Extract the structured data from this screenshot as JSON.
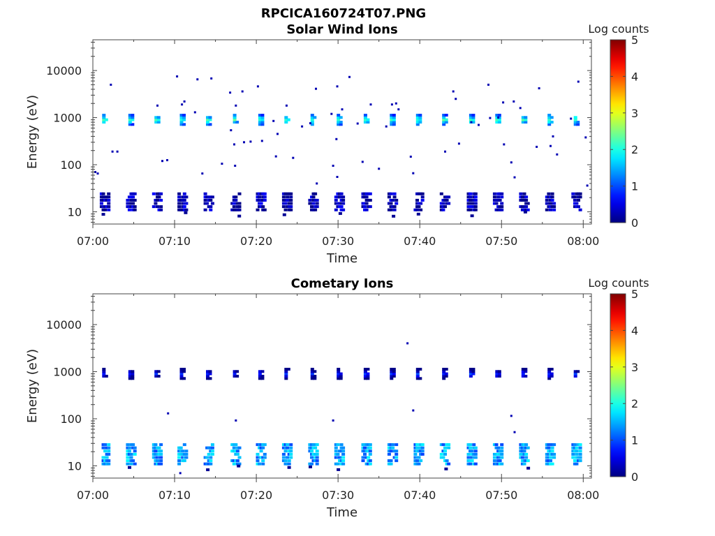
{
  "figure_title": "RPCICA160724T07.PNG",
  "chart_data": [
    {
      "type": "heatmap",
      "title": "Solar Wind Ions",
      "xlabel": "Time",
      "ylabel": "Energy (eV)",
      "x_ticks": [
        "07:00",
        "07:10",
        "07:20",
        "07:30",
        "07:40",
        "07:50",
        "08:00"
      ],
      "x_range_minutes": [
        0,
        61
      ],
      "y_ticks": [
        "10",
        "100",
        "1000",
        "10000"
      ],
      "y_scale": "log",
      "y_range": [
        5.5,
        45000
      ],
      "colorbar": {
        "label": "Log counts",
        "range": [
          0,
          5
        ],
        "ticks": [
          "0",
          "1",
          "2",
          "3",
          "4",
          "5"
        ],
        "colormap": "jet"
      },
      "scan_times_min": [
        1.5,
        4.7,
        7.9,
        11.0,
        14.2,
        17.5,
        20.6,
        23.8,
        27.0,
        30.2,
        33.5,
        36.7,
        39.9,
        43.1,
        46.4,
        49.6,
        52.8,
        56.0,
        59.2
      ],
      "peak_energy_ev": 900,
      "peak_log_counts": 2.2,
      "low_energy_band_ev": [
        11,
        25
      ],
      "low_energy_log_counts": 0.2,
      "sparse_points": [
        [
          0.3,
          70
        ],
        [
          0.6,
          65
        ],
        [
          2.2,
          5000
        ],
        [
          2.4,
          190
        ],
        [
          3.0,
          190
        ],
        [
          7.9,
          1800
        ],
        [
          8.5,
          120
        ],
        [
          9.1,
          125
        ],
        [
          10.3,
          7500
        ],
        [
          10.9,
          1900
        ],
        [
          11.2,
          2200
        ],
        [
          12.5,
          1300
        ],
        [
          12.8,
          6500
        ],
        [
          13.4,
          65
        ],
        [
          14.5,
          6800
        ],
        [
          15.8,
          105
        ],
        [
          16.8,
          3400
        ],
        [
          16.9,
          540
        ],
        [
          17.3,
          270
        ],
        [
          17.5,
          1800
        ],
        [
          17.4,
          95
        ],
        [
          18.3,
          3600
        ],
        [
          18.5,
          300
        ],
        [
          19.3,
          310
        ],
        [
          20.2,
          4600
        ],
        [
          20.7,
          320
        ],
        [
          22.1,
          850
        ],
        [
          22.4,
          150
        ],
        [
          22.6,
          450
        ],
        [
          23.7,
          1800
        ],
        [
          24.5,
          140
        ],
        [
          25.6,
          650
        ],
        [
          26.6,
          760
        ],
        [
          27.3,
          4100
        ],
        [
          27.4,
          40
        ],
        [
          29.2,
          1200
        ],
        [
          29.4,
          95
        ],
        [
          29.9,
          4600
        ],
        [
          29.8,
          350
        ],
        [
          29.9,
          55
        ],
        [
          30.5,
          1500
        ],
        [
          31.4,
          7300
        ],
        [
          32.4,
          750
        ],
        [
          33.0,
          115
        ],
        [
          34.0,
          1900
        ],
        [
          35.0,
          82
        ],
        [
          35.9,
          650
        ],
        [
          36.6,
          1900
        ],
        [
          37.1,
          2000
        ],
        [
          37.4,
          1500
        ],
        [
          38.9,
          148
        ],
        [
          39.2,
          66
        ],
        [
          43.1,
          190
        ],
        [
          44.1,
          3600
        ],
        [
          44.4,
          2500
        ],
        [
          44.8,
          280
        ],
        [
          46.3,
          800
        ],
        [
          47.2,
          700
        ],
        [
          48.4,
          5000
        ],
        [
          48.6,
          980
        ],
        [
          49.6,
          1000
        ],
        [
          50.2,
          2100
        ],
        [
          50.3,
          270
        ],
        [
          51.2,
          112
        ],
        [
          51.6,
          54
        ],
        [
          51.5,
          2200
        ],
        [
          52.3,
          1600
        ],
        [
          54.6,
          4200
        ],
        [
          54.3,
          240
        ],
        [
          56.0,
          250
        ],
        [
          56.3,
          400
        ],
        [
          56.8,
          165
        ],
        [
          58.5,
          950
        ],
        [
          59.4,
          5800
        ],
        [
          60.3,
          380
        ],
        [
          60.5,
          36
        ]
      ]
    },
    {
      "type": "heatmap",
      "title": "Cometary Ions",
      "xlabel": "Time",
      "ylabel": "Energy (eV)",
      "x_ticks": [
        "07:00",
        "07:10",
        "07:20",
        "07:30",
        "07:40",
        "07:50",
        "08:00"
      ],
      "x_range_minutes": [
        0,
        61
      ],
      "y_ticks": [
        "10",
        "100",
        "1000",
        "10000"
      ],
      "y_scale": "log",
      "y_range": [
        5.5,
        45000
      ],
      "colorbar": {
        "label": "Log counts",
        "range": [
          0,
          5
        ],
        "ticks": [
          "0",
          "1",
          "2",
          "3",
          "4",
          "5"
        ],
        "colormap": "jet"
      },
      "scan_times_min": [
        1.5,
        4.7,
        7.9,
        11.0,
        14.2,
        17.5,
        20.6,
        23.8,
        27.0,
        30.2,
        33.5,
        36.7,
        39.9,
        43.1,
        46.4,
        49.6,
        52.8,
        56.0,
        59.2
      ],
      "peak_energy_ev": 900,
      "peak_log_counts": 0.9,
      "low_energy_band_ev": [
        11,
        32
      ],
      "low_energy_log_counts": 1.4,
      "sparse_points": [
        [
          9.2,
          130
        ],
        [
          17.5,
          92
        ],
        [
          29.4,
          92
        ],
        [
          38.5,
          4000
        ],
        [
          39.2,
          150
        ],
        [
          51.2,
          115
        ],
        [
          51.6,
          52
        ],
        [
          10.7,
          7
        ]
      ]
    }
  ]
}
